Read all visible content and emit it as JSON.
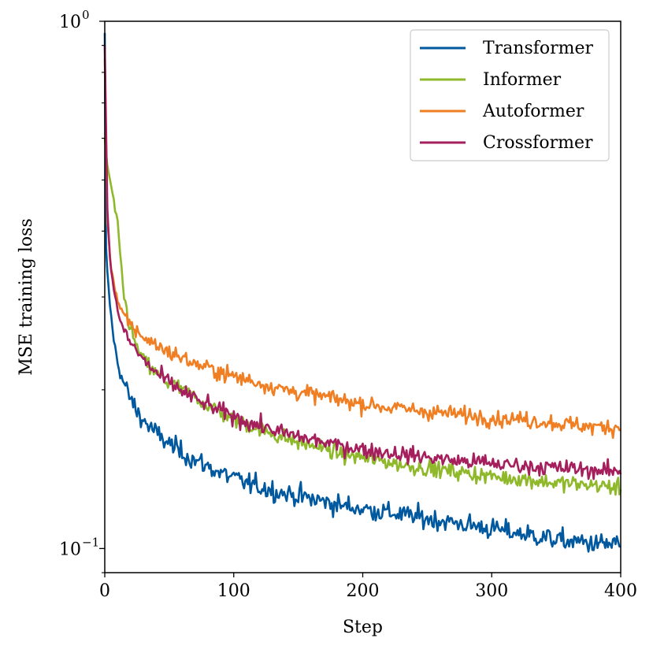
{
  "chart_data": {
    "type": "line",
    "title": "",
    "xlabel": "Step",
    "ylabel": "MSE training loss",
    "xlim": [
      0,
      400
    ],
    "ylim": [
      0.09,
      1.0
    ],
    "yscale": "log",
    "grid": false,
    "legend_position": "top-right",
    "x_ticks": [
      {
        "value": 0,
        "label": "0"
      },
      {
        "value": 100,
        "label": "100"
      },
      {
        "value": 200,
        "label": "200"
      },
      {
        "value": 300,
        "label": "300"
      },
      {
        "value": 400,
        "label": "400"
      }
    ],
    "y_major_ticks": [
      {
        "value": 0.1,
        "base": "10",
        "exponent": "−1"
      },
      {
        "value": 1.0,
        "base": "10",
        "exponent": "0"
      }
    ],
    "y_minor_ticks": [
      0.09,
      0.2,
      0.3,
      0.4,
      0.5,
      0.6,
      0.7,
      0.8,
      0.9
    ],
    "series": [
      {
        "name": "Transformer",
        "color": "#00589f",
        "x": [
          0,
          2,
          4,
          6,
          8,
          10,
          12,
          15,
          20,
          25,
          30,
          40,
          50,
          60,
          70,
          80,
          90,
          100,
          110,
          120,
          130,
          140,
          150,
          160,
          170,
          180,
          190,
          200,
          210,
          220,
          230,
          240,
          250,
          260,
          270,
          280,
          290,
          300,
          310,
          320,
          330,
          340,
          350,
          360,
          370,
          380,
          390,
          400
        ],
        "values": [
          0.42,
          0.33,
          0.29,
          0.26,
          0.24,
          0.225,
          0.215,
          0.205,
          0.192,
          0.182,
          0.175,
          0.165,
          0.158,
          0.152,
          0.147,
          0.143,
          0.139,
          0.136,
          0.133,
          0.131,
          0.129,
          0.127,
          0.126,
          0.124,
          0.123,
          0.121,
          0.12,
          0.119,
          0.118,
          0.117,
          0.116,
          0.115,
          0.114,
          0.113,
          0.112,
          0.111,
          0.11,
          0.109,
          0.108,
          0.107,
          0.106,
          0.105,
          0.104,
          0.103,
          0.103,
          0.102,
          0.102,
          0.102
        ]
      },
      {
        "name": "Informer",
        "color": "#8fb92b",
        "x": [
          0,
          2,
          4,
          6,
          8,
          10,
          12,
          15,
          20,
          25,
          30,
          40,
          50,
          60,
          70,
          80,
          90,
          100,
          110,
          120,
          130,
          140,
          150,
          160,
          170,
          180,
          190,
          200,
          210,
          220,
          230,
          240,
          250,
          260,
          270,
          280,
          290,
          300,
          310,
          320,
          330,
          340,
          350,
          360,
          370,
          380,
          390,
          400
        ],
        "values": [
          0.6,
          0.53,
          0.5,
          0.47,
          0.44,
          0.41,
          0.36,
          0.3,
          0.26,
          0.24,
          0.228,
          0.214,
          0.206,
          0.2,
          0.193,
          0.187,
          0.181,
          0.176,
          0.172,
          0.168,
          0.165,
          0.162,
          0.159,
          0.157,
          0.155,
          0.152,
          0.15,
          0.149,
          0.147,
          0.146,
          0.144,
          0.143,
          0.142,
          0.141,
          0.14,
          0.139,
          0.138,
          0.137,
          0.136,
          0.136,
          0.135,
          0.134,
          0.133,
          0.133,
          0.132,
          0.132,
          0.131,
          0.13
        ]
      },
      {
        "name": "Autoformer",
        "color": "#f07e22",
        "x": [
          0,
          2,
          4,
          6,
          8,
          10,
          12,
          15,
          20,
          25,
          30,
          40,
          50,
          60,
          70,
          80,
          90,
          100,
          110,
          120,
          130,
          140,
          150,
          160,
          170,
          180,
          190,
          200,
          210,
          220,
          230,
          240,
          250,
          260,
          270,
          280,
          290,
          300,
          310,
          320,
          330,
          340,
          350,
          360,
          370,
          380,
          390,
          400
        ],
        "values": [
          0.85,
          0.42,
          0.36,
          0.33,
          0.31,
          0.295,
          0.285,
          0.275,
          0.265,
          0.258,
          0.252,
          0.243,
          0.236,
          0.23,
          0.224,
          0.22,
          0.216,
          0.212,
          0.209,
          0.206,
          0.203,
          0.2,
          0.198,
          0.196,
          0.194,
          0.192,
          0.19,
          0.188,
          0.187,
          0.185,
          0.184,
          0.183,
          0.182,
          0.181,
          0.18,
          0.179,
          0.178,
          0.177,
          0.176,
          0.176,
          0.175,
          0.174,
          0.173,
          0.172,
          0.171,
          0.17,
          0.17,
          0.17
        ]
      },
      {
        "name": "Crossformer",
        "color": "#a51f5d",
        "x": [
          0,
          2,
          4,
          6,
          8,
          10,
          12,
          15,
          20,
          25,
          30,
          40,
          50,
          60,
          70,
          80,
          90,
          100,
          110,
          120,
          130,
          140,
          150,
          160,
          170,
          180,
          190,
          200,
          210,
          220,
          230,
          240,
          250,
          260,
          270,
          280,
          290,
          300,
          310,
          320,
          330,
          340,
          350,
          360,
          370,
          380,
          390,
          400
        ],
        "values": [
          0.9,
          0.44,
          0.36,
          0.32,
          0.3,
          0.285,
          0.27,
          0.258,
          0.246,
          0.236,
          0.228,
          0.215,
          0.206,
          0.199,
          0.192,
          0.187,
          0.182,
          0.178,
          0.174,
          0.171,
          0.168,
          0.165,
          0.163,
          0.161,
          0.159,
          0.157,
          0.156,
          0.154,
          0.153,
          0.152,
          0.151,
          0.15,
          0.149,
          0.148,
          0.147,
          0.146,
          0.146,
          0.145,
          0.144,
          0.144,
          0.143,
          0.143,
          0.142,
          0.142,
          0.141,
          0.141,
          0.14,
          0.14
        ]
      }
    ]
  }
}
